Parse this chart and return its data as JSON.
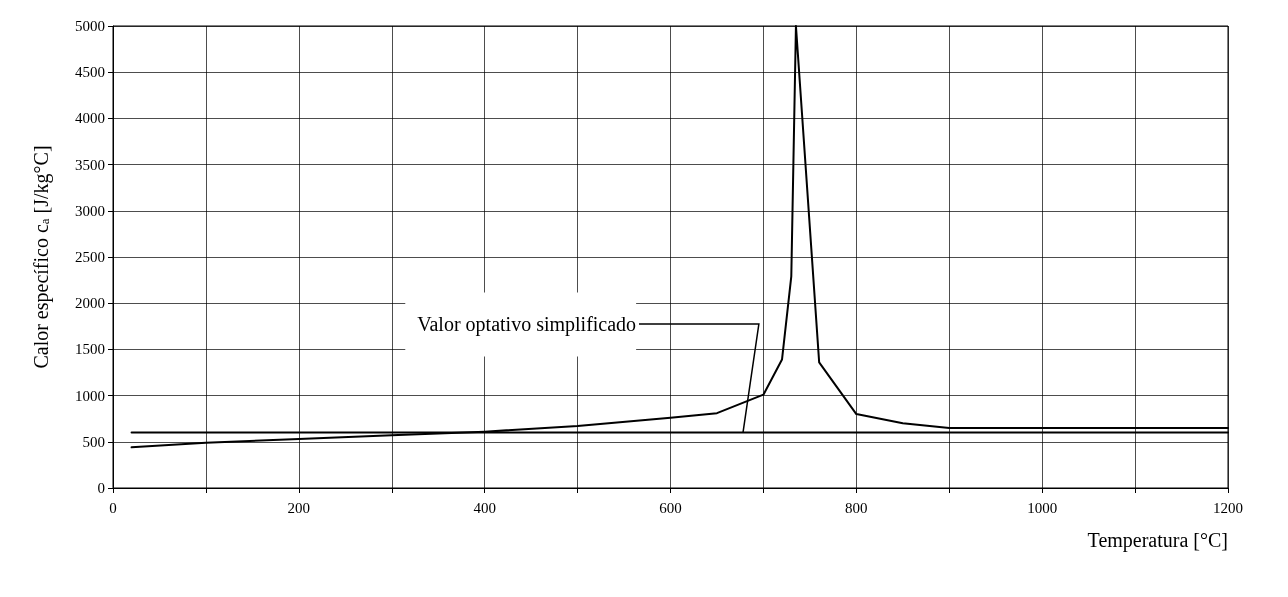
{
  "chart_data": {
    "type": "line",
    "xlabel": "Temperatura [°C]",
    "ylabel": "Calor específico c$_{a}$ [J/kg°C]",
    "series": [
      {
        "color": "#000000",
        "x": [
          20,
          100,
          200,
          300,
          400,
          500,
          600,
          650,
          700,
          720,
          730,
          735,
          760,
          800,
          850,
          900,
          1000,
          1100,
          1200
        ],
        "values": [
          440,
          490,
          530,
          570,
          610,
          670,
          760,
          810,
          1010,
          1390,
          2290,
          5000,
          1360,
          800,
          700,
          650,
          650,
          650,
          650
        ]
      },
      {
        "color": "#000000",
        "x": [
          20,
          1200
        ],
        "values": [
          600,
          600
        ]
      }
    ],
    "annotations": [
      {
        "text": "Valor optativo simplificado",
        "x": 678,
        "y": 600
      }
    ],
    "xlim": [
      0,
      1200
    ],
    "xticks": [
      0,
      {
        "value": 100,
        "label": null
      },
      200,
      {
        "value": 300,
        "label": null
      },
      400,
      {
        "value": 500,
        "label": null
      },
      600,
      {
        "value": 700,
        "label": null
      },
      800,
      {
        "value": 900,
        "label": null
      },
      1000,
      {
        "value": 1100,
        "label": null
      },
      1200
    ],
    "ylim": [
      0,
      5000
    ],
    "yticks": [
      0,
      500,
      1000,
      1500,
      2000,
      2500,
      3000,
      3500,
      4000,
      4500,
      5000
    ],
    "grid": true,
    "marker": "none",
    "line_style": "solid"
  }
}
